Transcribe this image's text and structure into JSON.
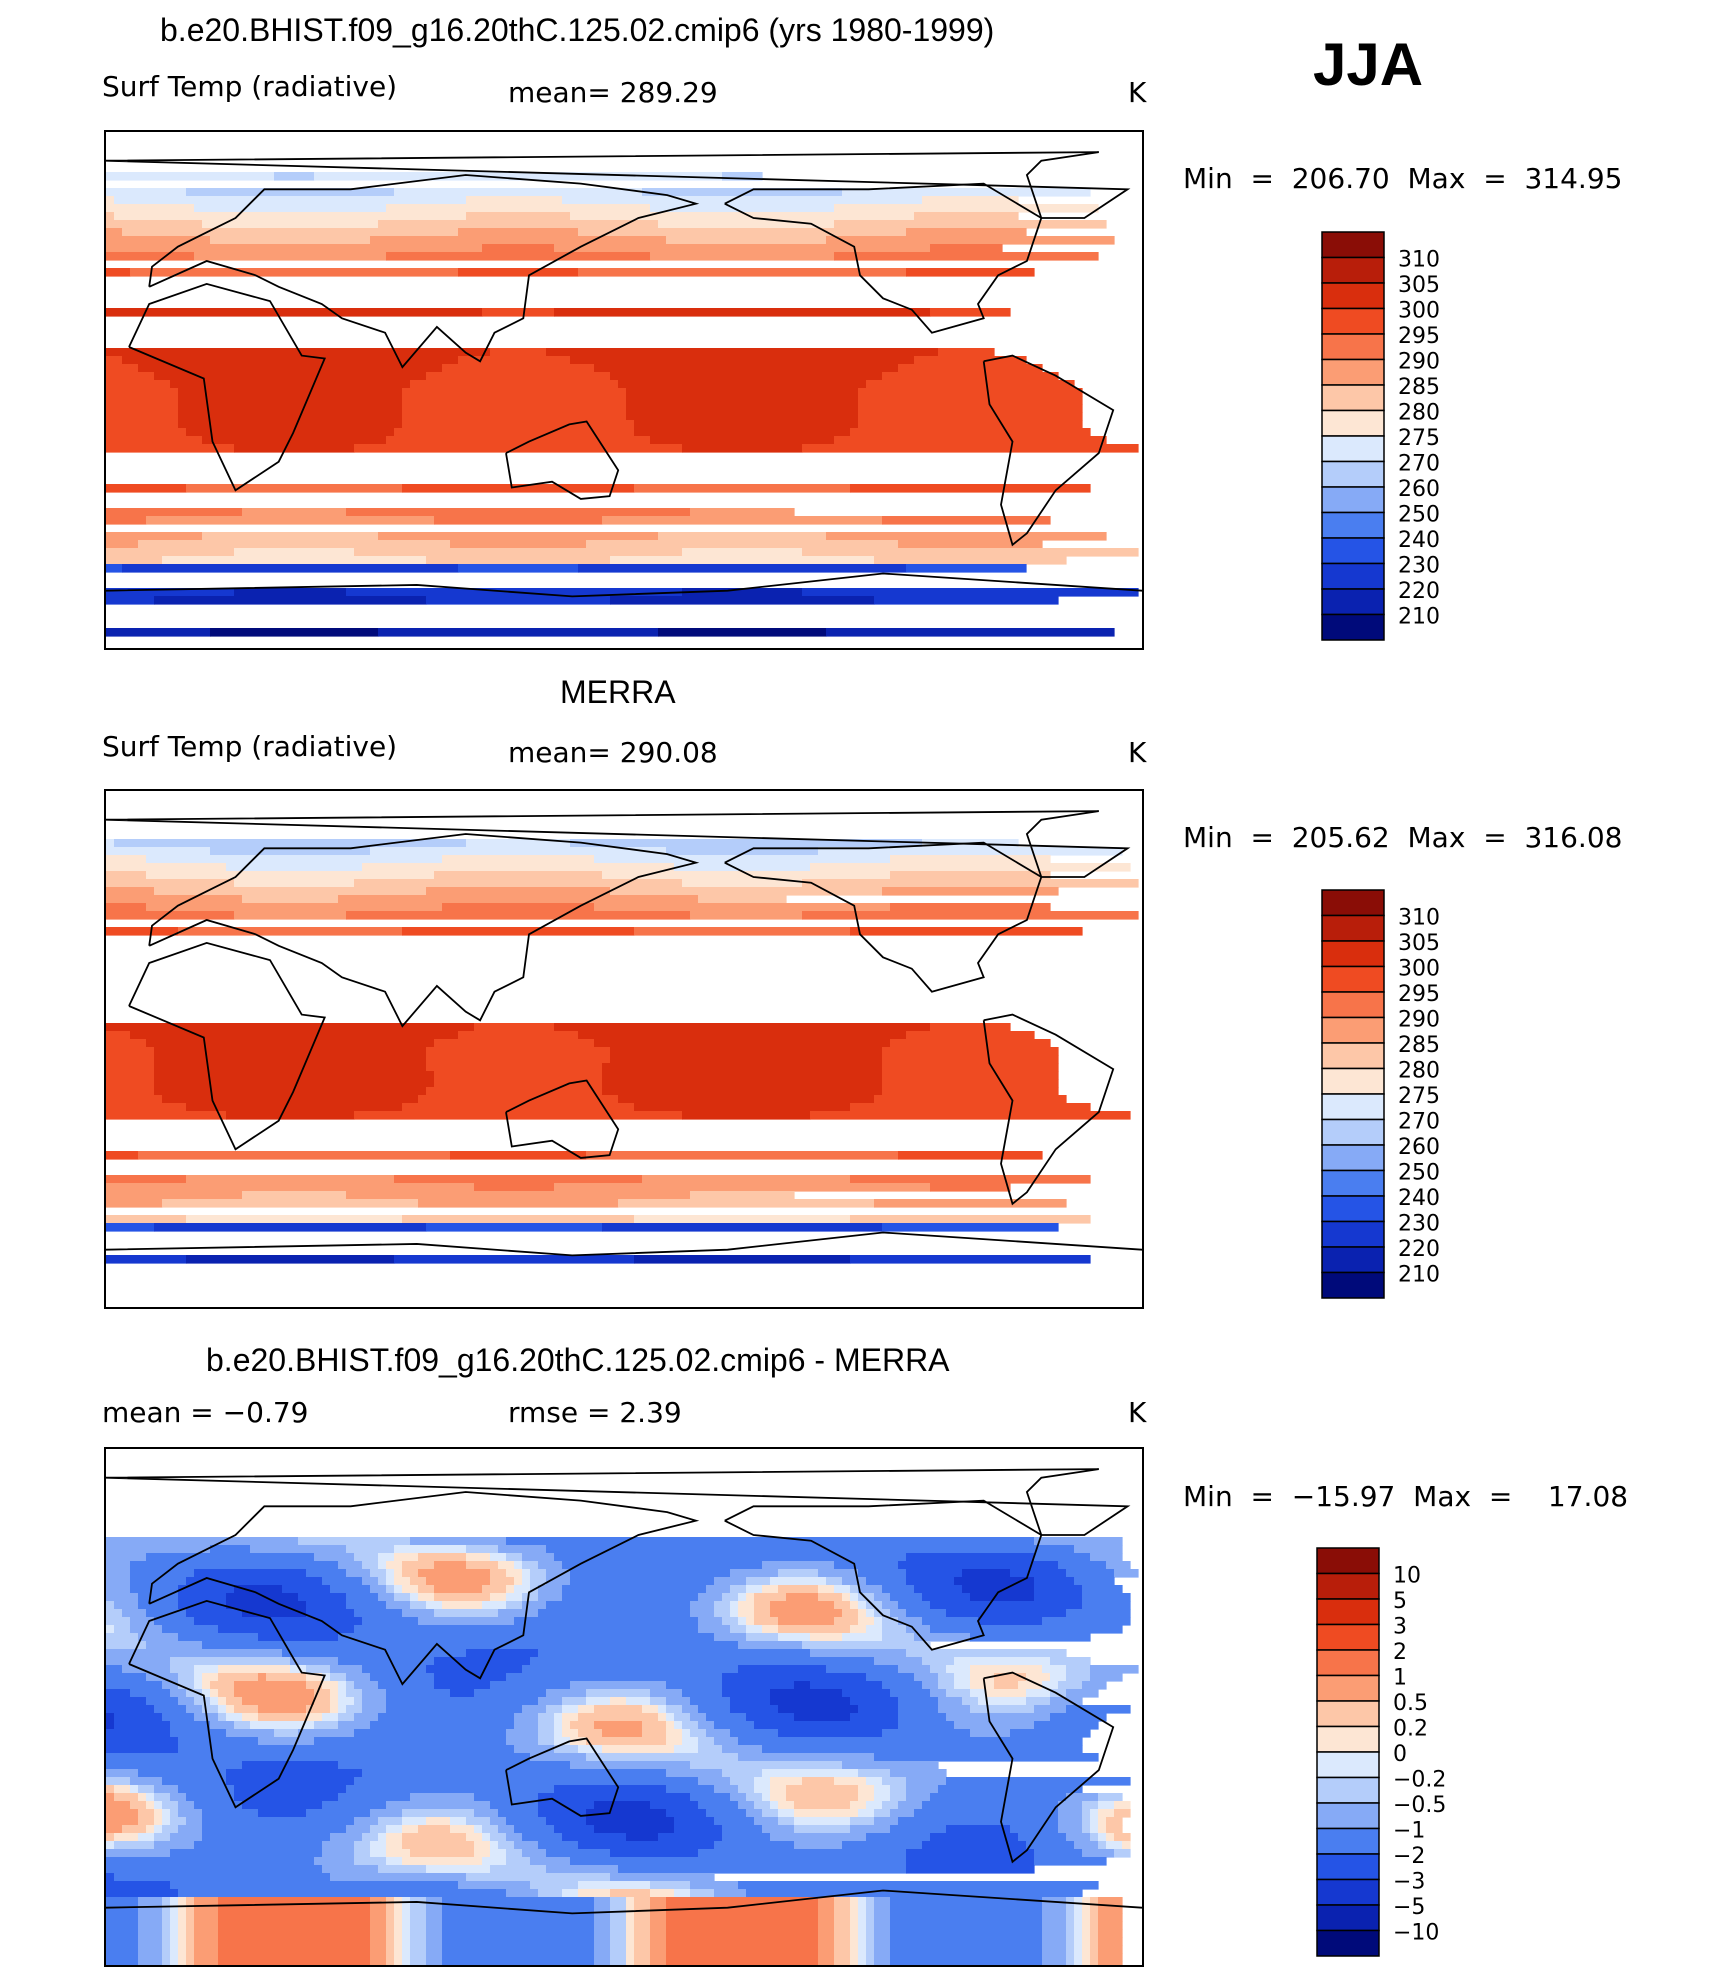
{
  "season": "JJA",
  "colors": {
    "abs": [
      "#000a7a",
      "#0a22b0",
      "#1538d0",
      "#2554e6",
      "#4a7ef0",
      "#86aaf6",
      "#b4cdfa",
      "#dbe9fd",
      "#fde6d4",
      "#fdc7a8",
      "#fb9d74",
      "#f7744a",
      "#ef4b22",
      "#d92e0d",
      "#b81e0a",
      "#8a0d06"
    ],
    "diff": [
      "#000a7a",
      "#0a22b0",
      "#1538d0",
      "#2554e6",
      "#4a7ef0",
      "#86aaf6",
      "#b4cdfa",
      "#dbe9fd",
      "#fde6d4",
      "#fdc7a8",
      "#fb9d74",
      "#f7744a",
      "#ef4b22",
      "#d92e0d",
      "#b81e0a",
      "#8a0d06"
    ]
  },
  "panels": [
    {
      "id": "model",
      "title": "b.e20.BHIST.f09_g16.20thC.125.02.cmip6 (yrs 1980-1999)",
      "left_label": "Surf Temp (radiative)",
      "mid_label": "mean=  289.29",
      "units": "K",
      "minmax": "Min  =  206.70  Max  =  314.95",
      "colorbar_labels": [
        "310",
        "305",
        "300",
        "295",
        "290",
        "285",
        "280",
        "275",
        "270",
        "260",
        "250",
        "240",
        "230",
        "220",
        "210"
      ],
      "chart_data": {
        "type": "heatmap",
        "variable": "Surf Temp (radiative)",
        "units": "K",
        "mean": 289.29,
        "min": 206.7,
        "max": 314.95,
        "contour_levels": [
          210,
          220,
          230,
          240,
          250,
          260,
          270,
          275,
          280,
          285,
          290,
          295,
          300,
          305,
          310
        ]
      }
    },
    {
      "id": "obs",
      "title": "MERRA",
      "left_label": "Surf Temp (radiative)",
      "mid_label": "mean=  290.08",
      "units": "K",
      "minmax": "Min  =  205.62  Max  =  316.08",
      "colorbar_labels": [
        "310",
        "305",
        "300",
        "295",
        "290",
        "285",
        "280",
        "275",
        "270",
        "260",
        "250",
        "240",
        "230",
        "220",
        "210"
      ],
      "chart_data": {
        "type": "heatmap",
        "variable": "Surf Temp (radiative)",
        "units": "K",
        "mean": 290.08,
        "min": 205.62,
        "max": 316.08,
        "contour_levels": [
          210,
          220,
          230,
          240,
          250,
          260,
          270,
          275,
          280,
          285,
          290,
          295,
          300,
          305,
          310
        ]
      }
    },
    {
      "id": "diff",
      "title": "b.e20.BHIST.f09_g16.20thC.125.02.cmip6 - MERRA",
      "left_label": "mean  =    −0.79",
      "mid_label": "rmse  =     2.39",
      "units": "K",
      "minmax": "Min  =  −15.97  Max  =    17.08",
      "colorbar_labels": [
        "10",
        "5",
        "3",
        "2",
        "1",
        "0.5",
        "0.2",
        "0",
        "−0.2",
        "−0.5",
        "−1",
        "−2",
        "−3",
        "−5",
        "−10"
      ],
      "chart_data": {
        "type": "heatmap",
        "variable": "model minus MERRA",
        "units": "K",
        "mean": -0.79,
        "rmse": 2.39,
        "min": -15.97,
        "max": 17.08,
        "contour_levels": [
          -10,
          -5,
          -3,
          -2,
          -1,
          -0.5,
          -0.2,
          0,
          0.2,
          0.5,
          1,
          2,
          3,
          5,
          10
        ]
      }
    }
  ]
}
